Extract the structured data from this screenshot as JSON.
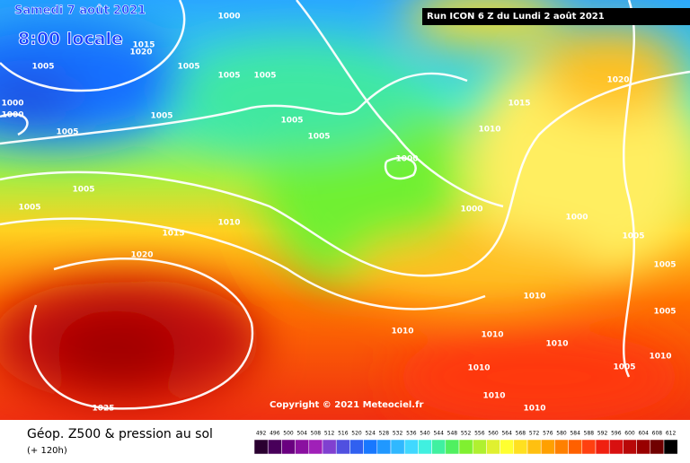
{
  "header": {
    "date": "Samedi 7 août 2021",
    "time": "8:00 locale",
    "run": "Run ICON 6 Z du Lundi 2 août 2021"
  },
  "copyright": "Copyright © 2021 Meteociel.fr",
  "footer": {
    "title": "Géop. Z500 & pression au sol",
    "subtitle": "(+ 120h)"
  },
  "isobar_labels": [
    "1000",
    "1015",
    "1020",
    "1005",
    "1005",
    "1005",
    "1005",
    "1000",
    "1000",
    "1005",
    "1005",
    "1005",
    "1005",
    "1010",
    "1015",
    "1020",
    "1000",
    "1005",
    "1005",
    "1010",
    "1015",
    "1020",
    "1000",
    "1000",
    "1005",
    "1005",
    "1005",
    "1010",
    "1010",
    "1010",
    "1010",
    "1010",
    "1010",
    "1010",
    "1005",
    "1010",
    "1025"
  ],
  "legend": {
    "ticks": [
      492,
      496,
      500,
      504,
      508,
      512,
      516,
      520,
      524,
      528,
      532,
      536,
      540,
      544,
      548,
      552,
      556,
      560,
      564,
      568,
      572,
      576,
      580,
      584,
      588,
      592,
      596,
      600,
      604,
      608,
      612
    ],
    "colors": [
      "#2a0030",
      "#48005a",
      "#6a0080",
      "#8a10a0",
      "#a020b8",
      "#8040d0",
      "#5050e0",
      "#3060f0",
      "#1878ff",
      "#2098ff",
      "#30b8ff",
      "#40d8ff",
      "#40f0e0",
      "#40f0a0",
      "#50f060",
      "#80f030",
      "#b0f030",
      "#e0f030",
      "#ffff30",
      "#ffe020",
      "#ffc010",
      "#ffa000",
      "#ff8000",
      "#ff6000",
      "#ff4010",
      "#f02010",
      "#d81010",
      "#b80808",
      "#980000",
      "#700000",
      "#000000"
    ]
  }
}
